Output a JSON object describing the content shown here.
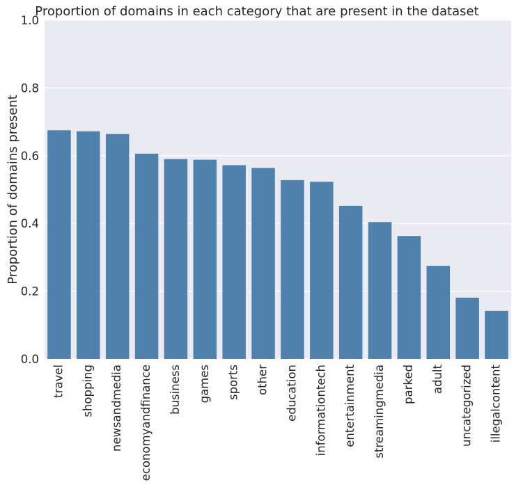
{
  "chart_data": {
    "type": "bar",
    "title": "Proportion of domains in each category that are present in the dataset",
    "xlabel": "",
    "ylabel": "Proportion of domains present",
    "ylim": [
      0,
      1.0
    ],
    "yticks": [
      "0.0",
      "0.2",
      "0.4",
      "0.6",
      "0.8",
      "1.0"
    ],
    "grid": "y",
    "bar_color": "#4f81ad",
    "background_color": "#eaeaf2",
    "categories": [
      "travel",
      "shopping",
      "newsandmedia",
      "economyandfinance",
      "business",
      "games",
      "sports",
      "other",
      "education",
      "informationtech",
      "entertainment",
      "streamingmedia",
      "parked",
      "adult",
      "uncategorized",
      "illegalcontent"
    ],
    "values": [
      0.675,
      0.672,
      0.664,
      0.606,
      0.59,
      0.588,
      0.572,
      0.564,
      0.528,
      0.523,
      0.452,
      0.404,
      0.363,
      0.275,
      0.181,
      0.142
    ]
  }
}
